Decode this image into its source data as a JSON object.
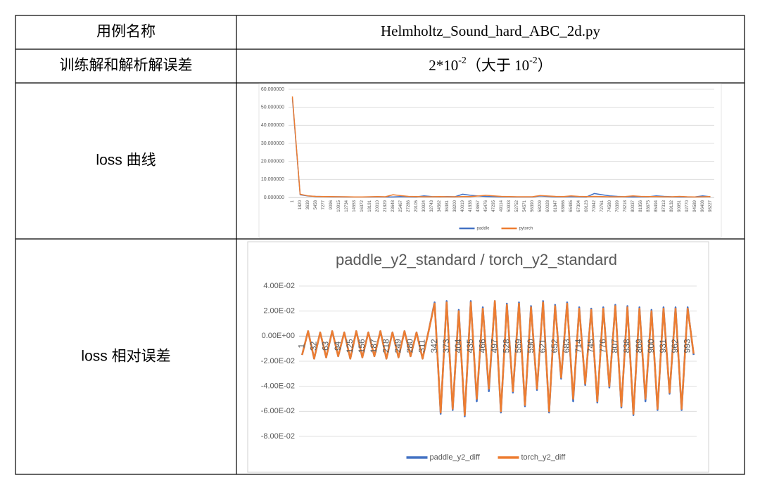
{
  "table": {
    "rows": [
      [
        "用例名称",
        "Helmholtz_Sound_hard_ABC_2d.py"
      ],
      [
        "训练解和解析解误差",
        {
          "parts": [
            "2*10",
            "-2",
            "（大于 10",
            "-2",
            "）"
          ]
        }
      ],
      [
        "loss 曲线"
      ],
      [
        "loss 相对误差"
      ]
    ]
  },
  "chart_data": [
    {
      "type": "line",
      "categories": [
        "1",
        "1820",
        "3639",
        "5458",
        "7277",
        "9096",
        "10915",
        "12734",
        "14553",
        "16372",
        "18191",
        "20010",
        "21829",
        "23648",
        "25467",
        "27286",
        "29105",
        "30924",
        "32743",
        "34562",
        "36381",
        "38200",
        "40019",
        "41838",
        "43657",
        "45476",
        "47295",
        "49114",
        "50933",
        "52752",
        "54571",
        "56390",
        "58209",
        "60028",
        "61847",
        "63666",
        "65485",
        "67304",
        "69123",
        "70942",
        "72761",
        "74580",
        "76399",
        "78218",
        "80037",
        "81856",
        "83675",
        "85494",
        "87313",
        "89132",
        "90951",
        "92770",
        "94589",
        "96408",
        "98227"
      ],
      "ylim": [
        0,
        60
      ],
      "yticks": [
        {
          "value": 0,
          "label": "0.000000"
        },
        {
          "value": 10,
          "label": "10.000000"
        },
        {
          "value": 20,
          "label": "20.000000"
        },
        {
          "value": 30,
          "label": "30.000000"
        },
        {
          "value": 40,
          "label": "40.000000"
        },
        {
          "value": 50,
          "label": "50.000000"
        },
        {
          "value": 60,
          "label": "60.000000"
        }
      ],
      "grid": true,
      "legend": "bottom",
      "series": [
        {
          "name": "paddle",
          "color": "#4472c4",
          "values": [
            55,
            1.5,
            0.8,
            0.6,
            0.5,
            0.4,
            0.4,
            0.3,
            0.3,
            0.3,
            0.3,
            0.4,
            0.3,
            0.3,
            0.5,
            0.4,
            0.3,
            0.9,
            0.5,
            0.4,
            0.5,
            0.4,
            1.8,
            1.2,
            0.8,
            0.6,
            0.5,
            0.4,
            0.4,
            0.3,
            0.3,
            0.3,
            0.8,
            0.6,
            0.4,
            0.4,
            0.5,
            0.4,
            0.3,
            2.2,
            1.5,
            0.9,
            0.6,
            0.4,
            0.3,
            0.4,
            0.4,
            0.9,
            0.6,
            0.4,
            0.3,
            0.3,
            0.3,
            0.9,
            0.4
          ]
        },
        {
          "name": "pytorch",
          "color": "#ed7d31",
          "values": [
            56,
            1.8,
            0.9,
            0.6,
            0.5,
            0.5,
            0.4,
            0.4,
            0.3,
            0.3,
            0.4,
            0.5,
            0.4,
            1.5,
            1.0,
            0.6,
            0.5,
            0.4,
            0.4,
            0.5,
            0.4,
            0.4,
            0.5,
            0.5,
            0.8,
            1.2,
            0.9,
            0.6,
            0.5,
            0.4,
            0.4,
            0.4,
            1.1,
            0.8,
            0.6,
            0.5,
            0.9,
            0.6,
            0.5,
            0.6,
            0.5,
            0.4,
            0.4,
            0.5,
            0.9,
            0.6,
            0.5,
            0.5,
            0.4,
            0.4,
            0.6,
            0.4,
            0.3,
            0.4,
            0.5
          ]
        }
      ]
    },
    {
      "type": "line",
      "title": "paddle_y2_standard / torch_y2_standard",
      "categories": [
        "1",
        null,
        "32",
        null,
        "63",
        null,
        "94",
        null,
        "125",
        null,
        "156",
        null,
        "187",
        null,
        "218",
        null,
        "249",
        null,
        "280",
        null,
        "311",
        null,
        "342",
        null,
        "373",
        null,
        "404",
        null,
        "435",
        null,
        "466",
        null,
        "497",
        null,
        "528",
        null,
        "559",
        null,
        "590",
        null,
        "621",
        null,
        "652",
        null,
        "683",
        null,
        "714",
        null,
        "745",
        null,
        "776",
        null,
        "807",
        null,
        "838",
        null,
        "869",
        null,
        "900",
        null,
        "931",
        null,
        "962",
        null,
        "993",
        null
      ],
      "ylim": [
        -0.08,
        0.04
      ],
      "yticks": [
        {
          "value": 0.04,
          "label": "4.00E-02"
        },
        {
          "value": 0.02,
          "label": "2.00E-02"
        },
        {
          "value": 0,
          "label": "0.00E+00"
        },
        {
          "value": -0.02,
          "label": "-2.00E-02"
        },
        {
          "value": -0.04,
          "label": "-4.00E-02"
        },
        {
          "value": -0.06,
          "label": "-6.00E-02"
        },
        {
          "value": -0.08,
          "label": "-8.00E-02"
        }
      ],
      "grid": true,
      "legend": "bottom",
      "series": [
        {
          "name": "paddle_y2_diff",
          "color": "#4472c4",
          "values": [
            -0.015,
            0.004,
            -0.018,
            0.003,
            -0.017,
            0.004,
            -0.016,
            0.003,
            -0.018,
            0.004,
            -0.017,
            0.003,
            -0.016,
            0.004,
            -0.018,
            0.003,
            -0.017,
            0.004,
            -0.016,
            0.003,
            -0.018,
            0.004,
            0.027,
            -0.062,
            0.028,
            -0.059,
            0.021,
            -0.064,
            0.028,
            -0.052,
            0.023,
            -0.044,
            0.028,
            -0.061,
            0.026,
            -0.045,
            0.027,
            -0.056,
            0.024,
            -0.043,
            0.028,
            -0.061,
            0.025,
            -0.034,
            0.027,
            -0.052,
            0.023,
            -0.039,
            0.022,
            -0.053,
            0.023,
            -0.041,
            0.025,
            -0.057,
            0.024,
            -0.063,
            0.023,
            -0.052,
            0.021,
            -0.059,
            0.023,
            -0.046,
            0.023,
            -0.059,
            0.023,
            -0.015
          ]
        },
        {
          "name": "torch_y2_diff",
          "color": "#ed7d31",
          "values": [
            -0.015,
            0.004,
            -0.018,
            0.003,
            -0.017,
            0.004,
            -0.016,
            0.003,
            -0.018,
            0.004,
            -0.017,
            0.003,
            -0.016,
            0.004,
            -0.018,
            0.003,
            -0.017,
            0.004,
            -0.016,
            0.003,
            -0.018,
            0.004,
            0.026,
            -0.061,
            0.027,
            -0.058,
            0.02,
            -0.063,
            0.027,
            -0.05,
            0.022,
            -0.042,
            0.028,
            -0.06,
            0.025,
            -0.044,
            0.026,
            -0.055,
            0.023,
            -0.042,
            0.027,
            -0.06,
            0.024,
            -0.033,
            0.026,
            -0.05,
            0.022,
            -0.038,
            0.021,
            -0.052,
            0.022,
            -0.04,
            0.024,
            -0.056,
            0.023,
            -0.062,
            0.022,
            -0.05,
            0.02,
            -0.058,
            0.022,
            -0.045,
            0.022,
            -0.058,
            0.022,
            -0.014
          ]
        }
      ]
    }
  ]
}
